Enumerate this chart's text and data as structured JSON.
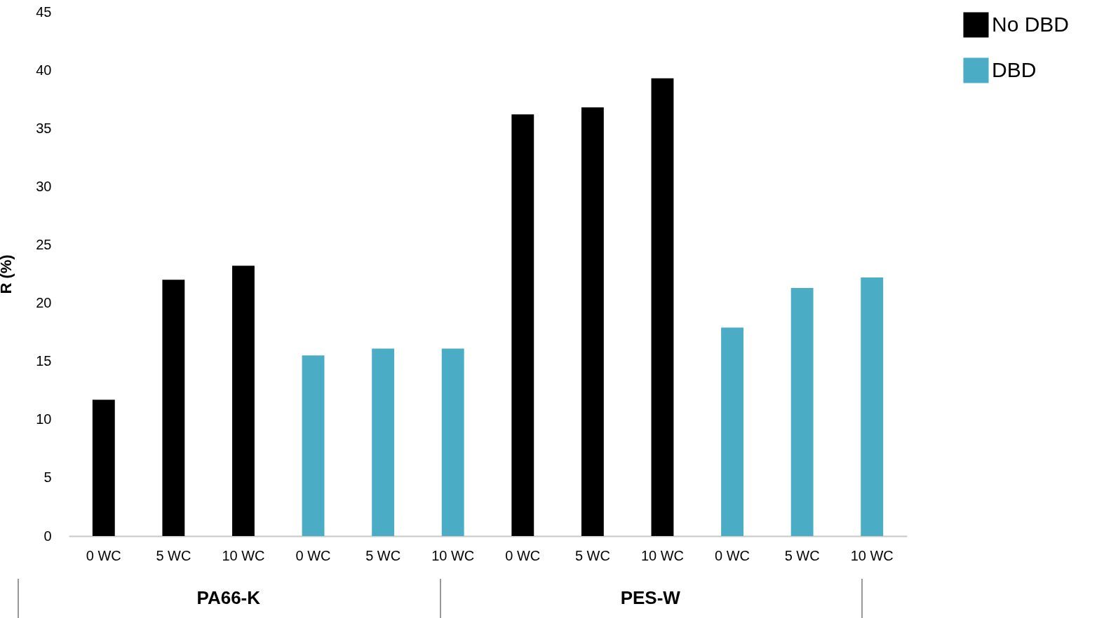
{
  "chart_data": {
    "type": "bar",
    "ylabel": "R (%)",
    "categories": [
      "0 WC",
      "5 WC",
      "10 WC",
      "0 WC",
      "5 WC",
      "10 WC",
      "0 WC",
      "5 WC",
      "10 WC",
      "0 WC",
      "5 WC",
      "10 WC"
    ],
    "series": [
      {
        "name": "No DBD",
        "color": "#000000",
        "values": [
          11.7,
          22.0,
          23.2,
          null,
          null,
          null,
          36.2,
          36.8,
          39.3,
          null,
          null,
          null
        ]
      },
      {
        "name": "DBD",
        "color": "#4bacc6",
        "values": [
          null,
          null,
          null,
          15.5,
          16.1,
          16.1,
          null,
          null,
          null,
          17.9,
          21.3,
          22.2
        ]
      }
    ],
    "ylim": [
      0,
      45
    ],
    "yticks": [
      0,
      5,
      10,
      15,
      20,
      25,
      30,
      35,
      40,
      45
    ],
    "grid": false,
    "legend": "right",
    "annotations": [
      "PA66-K",
      "PES-W"
    ]
  }
}
